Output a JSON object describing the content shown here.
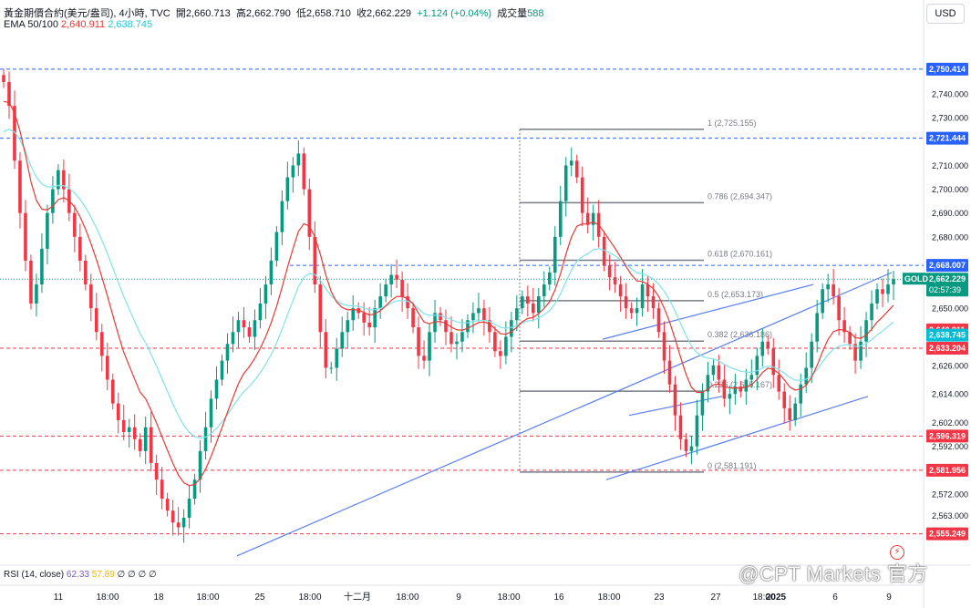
{
  "header": {
    "title": "黃金期價合約(美元/盎司), 4小時, TVC",
    "open_label": "開",
    "open": "2,660.713",
    "high_label": "高",
    "high": "2,662.790",
    "low_label": "低",
    "low": "2,658.710",
    "close_label": "收",
    "close": "2,662.229",
    "change": "+1.124 (+0.04%)",
    "volume_label": "成交量",
    "volume": "588",
    "ema_label": "EMA 50/100",
    "ema50": "2,640.911",
    "ema100": "2,638.745"
  },
  "currency_button": "USD",
  "rsi": {
    "label": "RSI (14, close)",
    "value1": "62.33",
    "value2": "57.89",
    "placeholders": "∅ ∅ ∅ ∅"
  },
  "watermark": "@CPT Markets 官方",
  "colors": {
    "up": "#089981",
    "down": "#f23645",
    "ema50": "#e53935",
    "ema100": "#7fe3ea",
    "fib": "#787b86",
    "trend": "#5b7ff0",
    "blue_level": "#2962ff",
    "red_level": "#f23645"
  },
  "chart_data": {
    "type": "candlestick",
    "symbol": "GOLD",
    "timeframe": "4h",
    "ylim": [
      2544,
      2768
    ],
    "y_ticks": [
      2555.249,
      2563.0,
      2572.0,
      2581.956,
      2592.0,
      2596.319,
      2602.0,
      2614.0,
      2626.0,
      2633.204,
      2638.745,
      2640.911,
      2650.0,
      2662.229,
      2668.007,
      2680.0,
      2690.0,
      2700.0,
      2710.0,
      2721.444,
      2730.0,
      2740.0,
      2750.414
    ],
    "y_tick_labels": [
      "2,555.249",
      "2,563.000",
      "2,572.000",
      "2,581.956",
      "2,592.000",
      "2,596.319",
      "2,602.000",
      "2,614.000",
      "2,626.000",
      "2,633.204",
      "2,638.745",
      "2,640.911",
      "2,650.000",
      "2,662.229",
      "2,668.007",
      "2,680.000",
      "2,690.000",
      "2,700.000",
      "2,710.000",
      "2,721.444",
      "2,730.000",
      "2,740.000",
      "2,750.414"
    ],
    "x_ticks": [
      "11",
      "18:00",
      "18",
      "18:00",
      "25",
      "18:00",
      "十二月",
      "18:00",
      "9",
      "18:00",
      "16",
      "18:00",
      "23",
      "27",
      "18:00",
      "2025",
      "6",
      "9"
    ],
    "price_tags": [
      {
        "label": "2,750.414",
        "value": 2750.414,
        "color": "#2962ff"
      },
      {
        "label": "2,721.444",
        "value": 2721.444,
        "color": "#2962ff"
      },
      {
        "label": "2,668.007",
        "value": 2668.007,
        "color": "#2962ff"
      },
      {
        "label": "GOLD",
        "value": 2662.229,
        "color": "#089981",
        "extra": "2,662.229",
        "timer": "02:57:39"
      },
      {
        "label": "2,640.911",
        "value": 2640.911,
        "color": "#f23645"
      },
      {
        "label": "2,638.745",
        "value": 2638.745,
        "color": "#00bcd4"
      },
      {
        "label": "2,633.204",
        "value": 2633.204,
        "color": "#f23645"
      },
      {
        "label": "2,596.319",
        "value": 2596.319,
        "color": "#f23645"
      },
      {
        "label": "2,581.956",
        "value": 2581.956,
        "color": "#f23645"
      },
      {
        "label": "2,555.249",
        "value": 2555.249,
        "color": "#f23645"
      }
    ],
    "horizontal_levels": [
      {
        "value": 2750.414,
        "color": "#2962ff",
        "style": "dashed"
      },
      {
        "value": 2721.444,
        "color": "#2962ff",
        "style": "dashed"
      },
      {
        "value": 2668.007,
        "color": "#2962ff",
        "style": "dashed"
      },
      {
        "value": 2633.204,
        "color": "#f23645",
        "style": "dashed"
      },
      {
        "value": 2596.319,
        "color": "#f23645",
        "style": "dashed"
      },
      {
        "value": 2581.956,
        "color": "#f23645",
        "style": "dashed"
      },
      {
        "value": 2555.249,
        "color": "#f23645",
        "style": "dashed"
      }
    ],
    "fib_levels": [
      {
        "label": "1 (2,725.155)",
        "value": 2725.155
      },
      {
        "label": "0.786 (2,694.347)",
        "value": 2694.347
      },
      {
        "label": "0.618 (2,670.161)",
        "value": 2670.161
      },
      {
        "label": "0.5 (2,653.173)",
        "value": 2653.173
      },
      {
        "label": "0.382 (2,636.186)",
        "value": 2636.186
      },
      {
        "label": "0.236 (2,615.167)",
        "value": 2615.167
      },
      {
        "label": "0 (2,581.191)",
        "value": 2581.191
      }
    ],
    "closes": [
      2745,
      2735,
      2712,
      2690,
      2670,
      2652,
      2660,
      2675,
      2690,
      2700,
      2708,
      2700,
      2690,
      2680,
      2670,
      2660,
      2650,
      2640,
      2630,
      2620,
      2610,
      2603,
      2598,
      2600,
      2595,
      2590,
      2600,
      2585,
      2578,
      2570,
      2565,
      2560,
      2558,
      2562,
      2570,
      2578,
      2590,
      2600,
      2612,
      2620,
      2628,
      2635,
      2640,
      2645,
      2642,
      2638,
      2645,
      2652,
      2660,
      2670,
      2682,
      2695,
      2705,
      2710,
      2715,
      2700,
      2680,
      2660,
      2640,
      2625,
      2625,
      2633,
      2640,
      2645,
      2650,
      2648,
      2644,
      2642,
      2650,
      2655,
      2660,
      2664,
      2662,
      2655,
      2650,
      2642,
      2630,
      2628,
      2640,
      2648,
      2645,
      2640,
      2635,
      2636,
      2640,
      2645,
      2648,
      2650,
      2645,
      2640,
      2632,
      2630,
      2638,
      2645,
      2650,
      2655,
      2652,
      2648,
      2655,
      2660,
      2665,
      2680,
      2695,
      2710,
      2712,
      2705,
      2690,
      2685,
      2690,
      2680,
      2668,
      2663,
      2660,
      2655,
      2650,
      2648,
      2650,
      2660,
      2655,
      2650,
      2640,
      2628,
      2618,
      2605,
      2595,
      2590,
      2592,
      2605,
      2615,
      2622,
      2626,
      2620,
      2612,
      2614,
      2617,
      2615,
      2620,
      2622,
      2630,
      2636,
      2633,
      2622,
      2615,
      2608,
      2603,
      2610,
      2618,
      2625,
      2636,
      2648,
      2658,
      2660,
      2655,
      2645,
      2640,
      2635,
      2628,
      2636,
      2645,
      2652,
      2658,
      2656,
      2660,
      2662.229
    ]
  }
}
